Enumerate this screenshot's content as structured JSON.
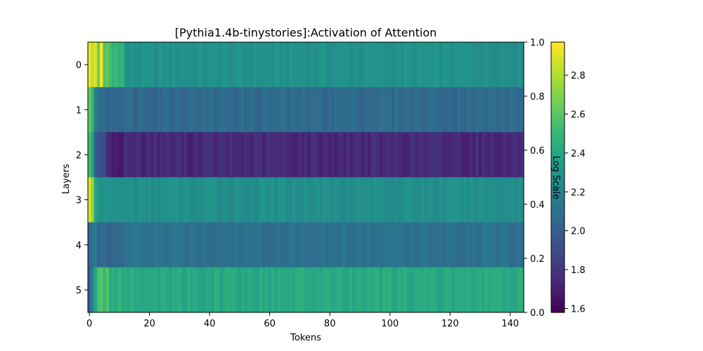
{
  "chart_data": {
    "type": "heatmap",
    "title": "[Pythia1.4b-tinystories]:Activation of Attention",
    "xlabel": "Tokens",
    "ylabel": "Layers",
    "colorbar_label": "Log Scale",
    "colormap": "viridis",
    "n_tokens": 145,
    "xlim": [
      -0.5,
      144.5
    ],
    "x_ticks": [
      "0",
      "20",
      "40",
      "60",
      "80",
      "100",
      "120",
      "140"
    ],
    "y_categories": [
      "0",
      "1",
      "2",
      "3",
      "4",
      "5"
    ],
    "right_axis_ticks": [
      "0.0",
      "0.2",
      "0.4",
      "0.6",
      "0.8",
      "1.0"
    ],
    "colorbar_range": [
      1.58,
      2.97
    ],
    "colorbar_ticks": [
      "1.6",
      "1.8",
      "2.0",
      "2.2",
      "2.4",
      "2.6",
      "2.8"
    ],
    "rows": [
      {
        "layer": "0",
        "head_values": [
          2.93,
          2.84,
          2.9,
          2.66,
          2.96,
          2.58,
          2.62,
          2.55,
          2.48,
          2.52,
          2.45,
          2.5
        ],
        "baseline": 2.28
      },
      {
        "layer": "1",
        "head_values": [
          2.65,
          2.5,
          2.18,
          2.1,
          2.05,
          2.08,
          2.02,
          2.04,
          2.03,
          2.05,
          2.04,
          2.02
        ],
        "baseline": 2.06
      },
      {
        "layer": "2",
        "head_values": [
          2.55,
          2.4,
          2.0,
          1.95,
          1.92,
          1.9,
          1.75,
          1.72,
          1.68,
          1.7,
          1.66,
          1.67
        ],
        "baseline": 1.74
      },
      {
        "layer": "3",
        "head_values": [
          2.9,
          2.75,
          2.4,
          2.3,
          2.28,
          2.3,
          2.29,
          2.28,
          2.27,
          2.28,
          2.27,
          2.28
        ],
        "baseline": 2.27
      },
      {
        "layer": "4",
        "head_values": [
          2.05,
          2.1,
          2.15,
          2.0,
          2.05,
          2.1,
          2.02,
          2.0,
          2.05,
          2.07,
          2.04,
          2.06
        ],
        "baseline": 2.1
      },
      {
        "layer": "5",
        "head_values": [
          2.0,
          2.2,
          2.4,
          2.55,
          2.6,
          2.5,
          2.58,
          2.42,
          2.45,
          2.4,
          2.5,
          2.42
        ],
        "baseline": 2.42
      }
    ]
  }
}
